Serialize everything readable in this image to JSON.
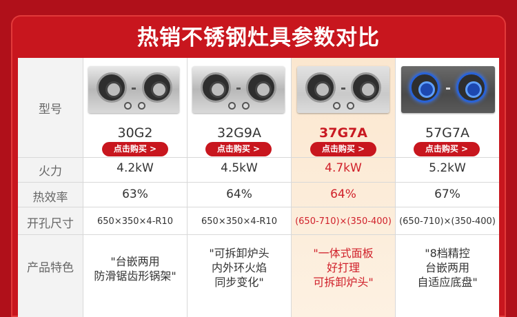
{
  "title": "热销不锈钢灶具参数对比",
  "row_labels": {
    "model": "型号",
    "power": "火力",
    "efficiency": "热效率",
    "cutout": "开孔尺寸",
    "features": "产品特色"
  },
  "buy_label": "点击购买 >",
  "highlight_color": "#c91a22",
  "products": [
    {
      "model": "30G2",
      "power": "4.2kW",
      "efficiency": "63%",
      "cutout": "650×350×4-R10",
      "features": [
        "\"台嵌两用",
        "防滑锯齿形锅架\""
      ]
    },
    {
      "model": "32G9A",
      "power": "4.5kW",
      "efficiency": "64%",
      "cutout": "650×350×4-R10",
      "features": [
        "\"可拆卸炉头",
        "内外环火焰",
        "同步变化\""
      ]
    },
    {
      "model": "37G7A",
      "power": "4.7kW",
      "efficiency": "64%",
      "cutout": "(650-710)×(350-400)",
      "features": [
        "\"一体式面板",
        "好打理",
        "可拆卸炉头\""
      ],
      "highlighted": true
    },
    {
      "model": "57G7A",
      "power": "5.2kW",
      "efficiency": "67%",
      "cutout": "(650-710)×(350-400)",
      "features": [
        "\"8档精控",
        "台嵌两用",
        "自适应底盘\""
      ]
    }
  ]
}
